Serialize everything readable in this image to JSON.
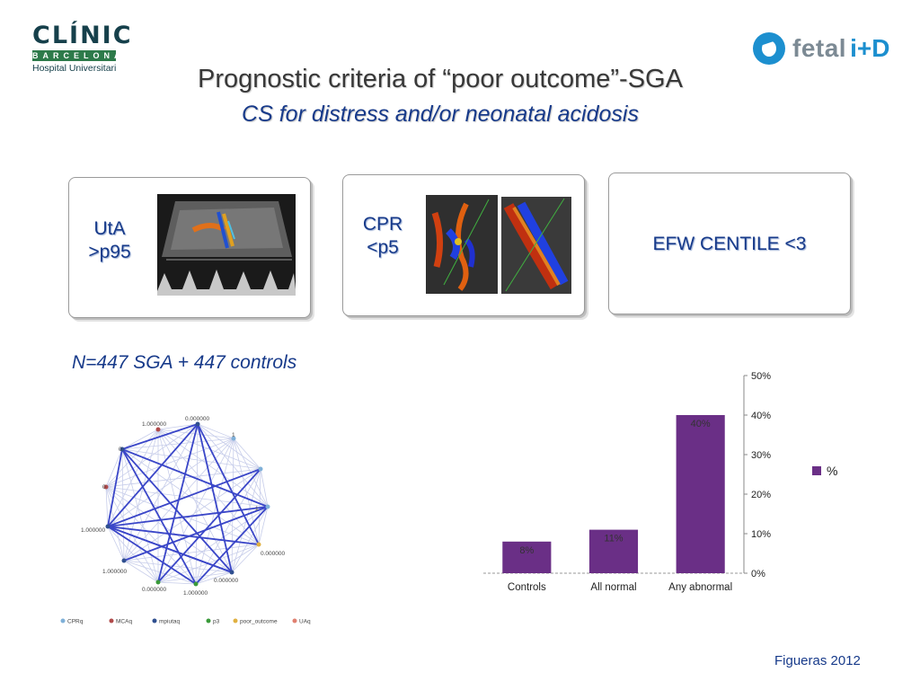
{
  "header": {
    "clinic_logo": {
      "name": "CLÍNIC",
      "subline": "BARCELONA",
      "tagline": "Hospital Universitari"
    },
    "fetal_logo": {
      "word": "fetal",
      "mark": "i+D"
    },
    "title": "Prognostic criteria of “poor outcome”-SGA",
    "subtitle": "CS for distress and/or neonatal acidosis"
  },
  "criteria": [
    {
      "label_line1": "UtA",
      "label_line2": ">p95"
    },
    {
      "label_line1": "CPR",
      "label_line2": "<p5"
    },
    {
      "label": "EFW CENTILE <3"
    }
  ],
  "sample_text": "N=447 SGA + 447 controls",
  "network": {
    "node_labels": [
      "1.000000",
      "0.000000",
      "1",
      "0",
      "1",
      "0",
      "0.000000",
      "1.000000",
      "1.000000",
      "0.000000",
      "1.000000",
      "0.000000"
    ],
    "legend": [
      {
        "label": "CPRq",
        "color": "#7fb0d8"
      },
      {
        "label": "MCAq",
        "color": "#b04a4a"
      },
      {
        "label": "mpiutaq",
        "color": "#2f4f8f"
      },
      {
        "label": "p3",
        "color": "#3a9a3a"
      },
      {
        "label": "poor_outcome",
        "color": "#e0b040"
      },
      {
        "label": "UAq",
        "color": "#e08070"
      }
    ]
  },
  "chart_data": {
    "type": "bar",
    "categories": [
      "Controls",
      "All normal",
      "Any abnormal"
    ],
    "series": [
      {
        "name": "%",
        "values": [
          8,
          11,
          40
        ]
      }
    ],
    "data_labels": [
      "8%",
      "11%",
      "40%"
    ],
    "ylim": [
      0,
      50
    ],
    "yticks": [
      "0%",
      "10%",
      "20%",
      "30%",
      "40%",
      "50%"
    ],
    "y_axis_side": "right",
    "legend_position": "right",
    "bar_color": "#6a2f86"
  },
  "citation": "Figueras 2012"
}
